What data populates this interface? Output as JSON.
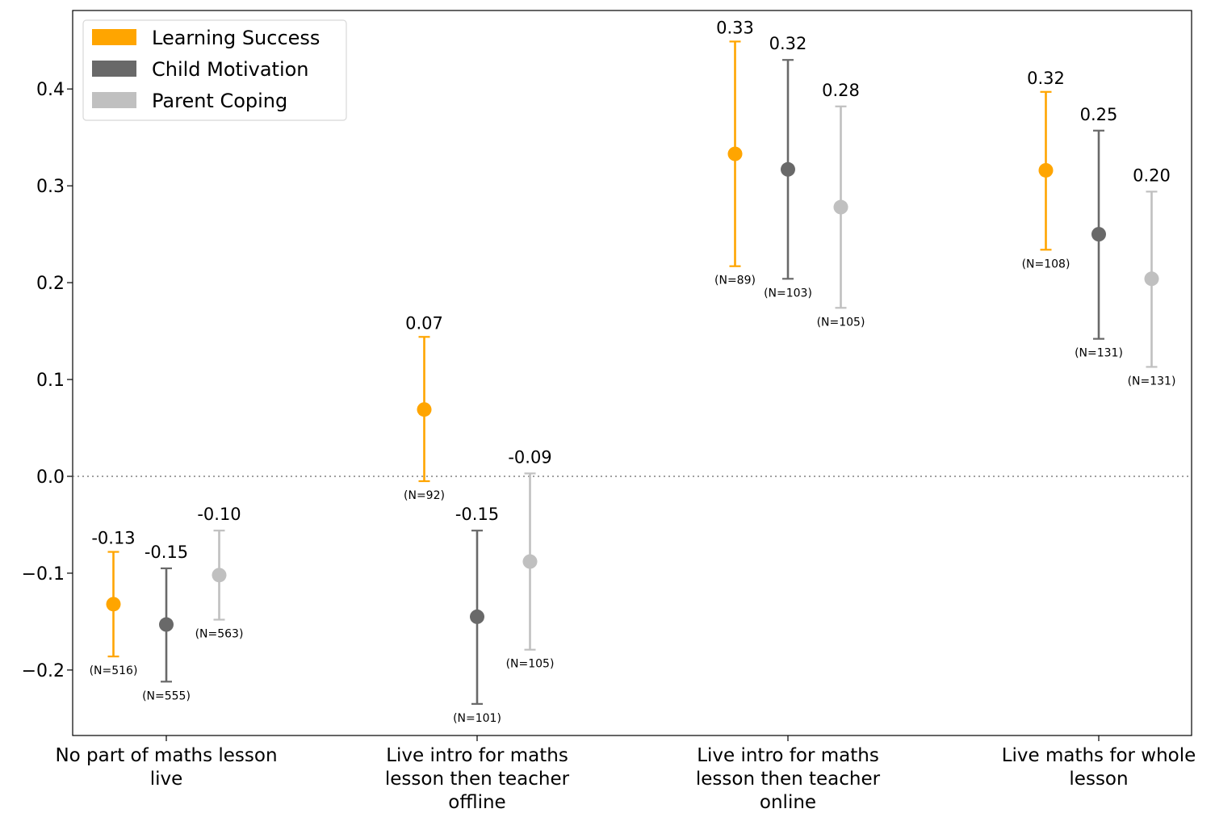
{
  "chart_data": {
    "type": "scatter",
    "subtype": "point-with-error-bars",
    "title": "",
    "xlabel": "",
    "ylabel": "",
    "ylim": [
      -0.27,
      0.48
    ],
    "yticks": [
      -0.2,
      -0.1,
      0.0,
      0.1,
      0.2,
      0.3,
      0.4
    ],
    "ytick_labels": [
      "−0.2",
      "−0.1",
      "0.0",
      "0.1",
      "0.2",
      "0.3",
      "0.4"
    ],
    "reference_line": 0.0,
    "grid": false,
    "legend_position": "top-left",
    "categories": [
      [
        "No part of maths lesson",
        "live"
      ],
      [
        "Live intro for maths",
        "lesson then teacher",
        "offline"
      ],
      [
        "Live intro for maths",
        "lesson then teacher",
        "online"
      ],
      [
        "Live maths for whole",
        "lesson"
      ]
    ],
    "series": [
      {
        "name": "Learning Success",
        "color": "#FFA500",
        "values": [
          -0.132,
          0.069,
          0.333,
          0.316
        ],
        "lower": [
          -0.186,
          -0.005,
          0.217,
          0.234
        ],
        "upper": [
          -0.078,
          0.144,
          0.449,
          0.397
        ],
        "value_labels": [
          "-0.13",
          "0.07",
          "0.33",
          "0.32"
        ],
        "n_labels": [
          "(N=516)",
          "(N=92)",
          "(N=89)",
          "(N=108)"
        ]
      },
      {
        "name": "Child Motivation",
        "color": "#696969",
        "values": [
          -0.153,
          -0.145,
          0.317,
          0.25
        ],
        "lower": [
          -0.212,
          -0.235,
          0.204,
          0.142
        ],
        "upper": [
          -0.095,
          -0.056,
          0.43,
          0.357
        ],
        "value_labels": [
          "-0.15",
          "-0.15",
          "0.32",
          "0.25"
        ],
        "n_labels": [
          "(N=555)",
          "(N=101)",
          "(N=103)",
          "(N=131)"
        ]
      },
      {
        "name": "Parent Coping",
        "color": "#C0C0C0",
        "values": [
          -0.102,
          -0.088,
          0.278,
          0.204
        ],
        "lower": [
          -0.148,
          -0.179,
          0.174,
          0.113
        ],
        "upper": [
          -0.056,
          0.003,
          0.382,
          0.294
        ],
        "value_labels": [
          "-0.10",
          "-0.09",
          "0.28",
          "0.20"
        ],
        "n_labels": [
          "(N=563)",
          "(N=105)",
          "(N=105)",
          "(N=131)"
        ]
      }
    ]
  }
}
